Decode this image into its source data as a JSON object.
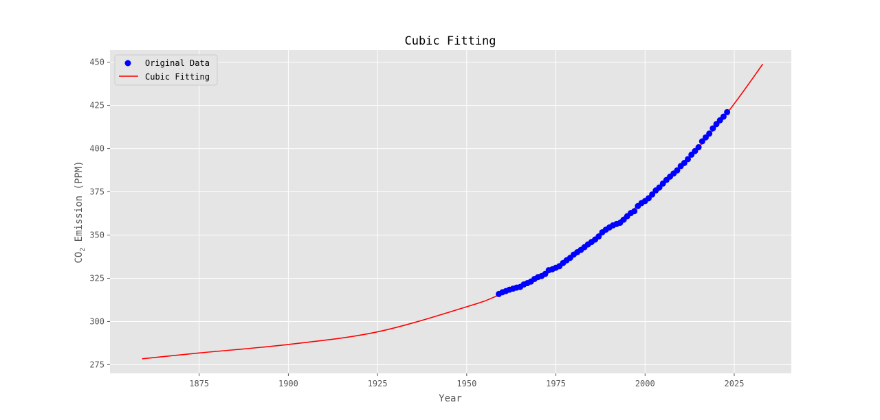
{
  "chart_data": {
    "type": "scatter",
    "title": "Cubic Fitting",
    "xlabel": "Year",
    "ylabel_pre": "CO",
    "ylabel_sub": "2",
    "ylabel_post": " Emission (PPM)",
    "xlim": [
      1850,
      2041
    ],
    "ylim": [
      270,
      457
    ],
    "xticks": [
      1875,
      1900,
      1925,
      1950,
      1975,
      2000,
      2025
    ],
    "yticks": [
      275,
      300,
      325,
      350,
      375,
      400,
      425,
      450
    ],
    "grid": true,
    "legend_position": "top-left",
    "legend": [
      "Original Data",
      "Cubic Fitting"
    ],
    "series": [
      {
        "name": "Original Data",
        "kind": "scatter",
        "color": "#0000ff",
        "x": [
          1959,
          1960,
          1961,
          1962,
          1963,
          1964,
          1965,
          1966,
          1967,
          1968,
          1969,
          1970,
          1971,
          1972,
          1973,
          1974,
          1975,
          1976,
          1977,
          1978,
          1979,
          1980,
          1981,
          1982,
          1983,
          1984,
          1985,
          1986,
          1987,
          1988,
          1989,
          1990,
          1991,
          1992,
          1993,
          1994,
          1995,
          1996,
          1997,
          1998,
          1999,
          2000,
          2001,
          2002,
          2003,
          2004,
          2005,
          2006,
          2007,
          2008,
          2009,
          2010,
          2011,
          2012,
          2013,
          2014,
          2015,
          2016,
          2017,
          2018,
          2019,
          2020,
          2021,
          2022,
          2023
        ],
        "y": [
          315.9,
          316.9,
          317.6,
          318.4,
          319.0,
          319.6,
          320.0,
          321.4,
          322.2,
          323.1,
          324.6,
          325.7,
          326.3,
          327.5,
          329.7,
          330.2,
          331.1,
          332.0,
          333.8,
          335.4,
          336.8,
          338.7,
          340.1,
          341.4,
          343.0,
          344.6,
          346.0,
          347.4,
          349.2,
          351.6,
          353.1,
          354.4,
          355.6,
          356.4,
          357.1,
          358.9,
          360.9,
          362.7,
          363.8,
          366.8,
          368.5,
          369.7,
          371.3,
          373.5,
          375.8,
          377.5,
          379.8,
          381.9,
          383.8,
          385.6,
          387.4,
          389.9,
          391.7,
          393.9,
          396.5,
          398.6,
          400.8,
          404.2,
          406.5,
          408.7,
          411.7,
          414.2,
          416.4,
          418.5,
          421.1
        ]
      },
      {
        "name": "Cubic Fitting",
        "kind": "line",
        "color": "#ff0000",
        "x": [
          1859,
          1875,
          1900,
          1925,
          1950,
          1959,
          1975,
          2000,
          2010,
          2023,
          2033
        ],
        "y": [
          278.4,
          281.8,
          286.7,
          294.0,
          308.5,
          315.3,
          330.8,
          370.3,
          389.3,
          420.6,
          448.9
        ]
      }
    ]
  }
}
